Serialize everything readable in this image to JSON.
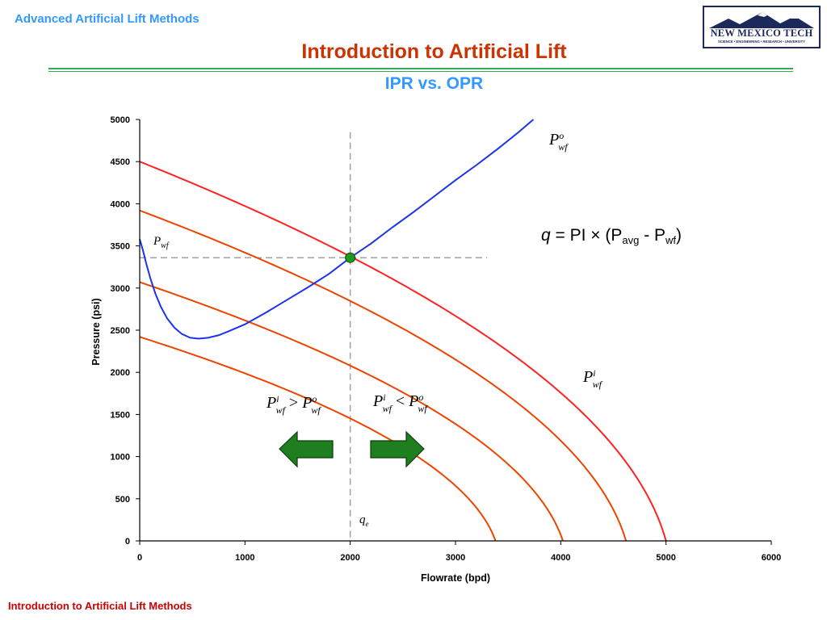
{
  "header": {
    "course": "Advanced Artificial Lift Methods",
    "title": "Introduction to Artificial Lift",
    "subtitle": "IPR vs. OPR"
  },
  "logo": {
    "name": "NEW MEXICO TECH",
    "tagline": "SCIENCE • ENGINEERING • RESEARCH • UNIVERSITY"
  },
  "footer": {
    "text": "Introduction to Artificial Lift Methods"
  },
  "equation": {
    "lhs": "q",
    "rhs_prefix": " = PI × (P",
    "sub1": "avg",
    "middle": " - P",
    "sub2": "wf",
    "rhs_suffix": ")"
  },
  "colors": {
    "accent_blue": "#3399ff",
    "title_red": "#cc3300",
    "ipr_top": "#ff2222",
    "ipr_others": "#ee4400",
    "opr_blue": "#1a33ee",
    "intersection": "#1f9a1f",
    "arrow_green": "#1e7f1e",
    "rule_green": "#33aa55"
  },
  "chart_data": {
    "type": "line",
    "xlabel": "Flowrate (bpd)",
    "ylabel": "Pressure (psi)",
    "xlim": [
      0,
      6000
    ],
    "ylim": [
      0,
      5000
    ],
    "xticks": [
      0,
      1000,
      2000,
      3000,
      4000,
      5000,
      6000
    ],
    "yticks": [
      0,
      500,
      1000,
      1500,
      2000,
      2500,
      3000,
      3500,
      4000,
      4500,
      5000
    ],
    "grid": false,
    "ipr_curves": [
      {
        "pavg": 4500,
        "qmax": 5000,
        "color": "#ff2222"
      },
      {
        "pavg": 3920,
        "qmax": 4620,
        "color": "#ee4400"
      },
      {
        "pavg": 3070,
        "qmax": 4020,
        "color": "#ee4400"
      },
      {
        "pavg": 2420,
        "qmax": 3380,
        "color": "#ee4400"
      }
    ],
    "opr_curve": {
      "color": "#1a33ee",
      "points": [
        [
          0,
          3580
        ],
        [
          30,
          3450
        ],
        [
          60,
          3300
        ],
        [
          100,
          3120
        ],
        [
          150,
          2930
        ],
        [
          200,
          2780
        ],
        [
          260,
          2640
        ],
        [
          330,
          2530
        ],
        [
          400,
          2455
        ],
        [
          480,
          2410
        ],
        [
          560,
          2400
        ],
        [
          650,
          2410
        ],
        [
          750,
          2440
        ],
        [
          850,
          2490
        ],
        [
          1000,
          2570
        ],
        [
          1200,
          2710
        ],
        [
          1400,
          2860
        ],
        [
          1600,
          3010
        ],
        [
          1800,
          3170
        ],
        [
          2000,
          3360
        ],
        [
          2200,
          3530
        ],
        [
          2400,
          3720
        ],
        [
          2600,
          3900
        ],
        [
          2800,
          4090
        ],
        [
          3000,
          4280
        ],
        [
          3200,
          4460
        ],
        [
          3400,
          4650
        ],
        [
          3600,
          4850
        ],
        [
          3740,
          5000
        ]
      ]
    },
    "operating_point": {
      "x": 2000,
      "y": 3360
    },
    "reference_lines": {
      "vertical_x": 2000,
      "vertical_top": 4850,
      "horizontal_y": 3360,
      "horizontal_x_end": 3300
    },
    "annotations": {
      "pwf_o": {
        "main": "P",
        "sup": "o",
        "sub": "wf"
      },
      "pwf_i": {
        "main": "P",
        "sup": "i",
        "sub": "wf"
      },
      "pwf_curve": {
        "main": "P",
        "sub": "wf"
      },
      "left_compare": {
        "a_sup": "i",
        "op": ">",
        "b_sup": "o",
        "main": "P",
        "sub": "wf"
      },
      "right_compare": {
        "a_sup": "i",
        "op": "<",
        "b_sup": "o",
        "main": "P",
        "sub": "wf"
      },
      "qe": {
        "main": "q",
        "sub": "e"
      }
    },
    "arrows": [
      {
        "direction": "left"
      },
      {
        "direction": "right"
      }
    ]
  }
}
